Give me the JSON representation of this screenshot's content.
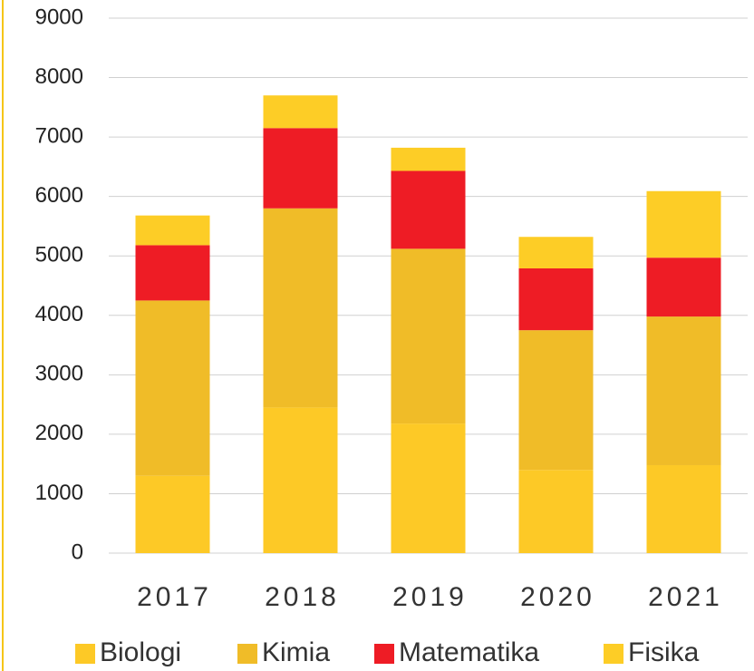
{
  "chart_data": {
    "type": "stacked_bar",
    "categories": [
      "2017",
      "2018",
      "2019",
      "2020",
      "2021"
    ],
    "series": [
      {
        "name": "Biologi",
        "color": "#fdc926",
        "values": [
          1300,
          2450,
          2180,
          1400,
          1480
        ]
      },
      {
        "name": "Kimia",
        "color": "#f0bc28",
        "values": [
          2950,
          3350,
          2940,
          2350,
          2500
        ]
      },
      {
        "name": "Matematika",
        "color": "#ee1c25",
        "values": [
          930,
          1350,
          1310,
          1040,
          990
        ]
      },
      {
        "name": "Fisika",
        "color": "#fdcd26",
        "values": [
          500,
          550,
          390,
          530,
          1120
        ]
      }
    ],
    "ylim": [
      0,
      9000
    ],
    "yticks": [
      0,
      1000,
      2000,
      3000,
      4000,
      5000,
      6000,
      7000,
      8000,
      9000
    ],
    "grid": true,
    "legend": "bottom"
  }
}
